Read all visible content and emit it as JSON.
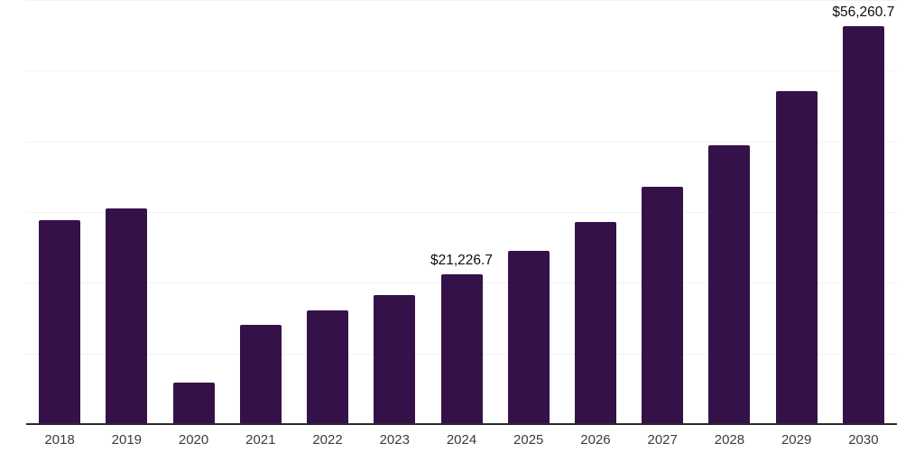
{
  "chart_data": {
    "type": "bar",
    "categories": [
      "2018",
      "2019",
      "2020",
      "2021",
      "2022",
      "2023",
      "2024",
      "2025",
      "2026",
      "2027",
      "2028",
      "2029",
      "2030"
    ],
    "values": [
      28900,
      30550,
      5890,
      14060,
      16110,
      18290,
      21226.7,
      24550,
      28640,
      33620,
      39500,
      47050,
      56260.7
    ],
    "data_labels": [
      null,
      null,
      null,
      null,
      null,
      null,
      "$21,226.7",
      null,
      null,
      null,
      null,
      null,
      "$56,260.7"
    ],
    "xlabel": "",
    "ylabel": "",
    "ylim": [
      0,
      60000
    ],
    "gridline_interval": 10000,
    "grid": "horizontal",
    "legend_position": "none",
    "colors": {
      "bar": "#35114a",
      "gridline": "#f2f2f2",
      "axis_line": "#2b2b2b",
      "tick_label": "#3c3c3c",
      "data_label": "#0d0d0d",
      "background": "#ffffff"
    }
  }
}
